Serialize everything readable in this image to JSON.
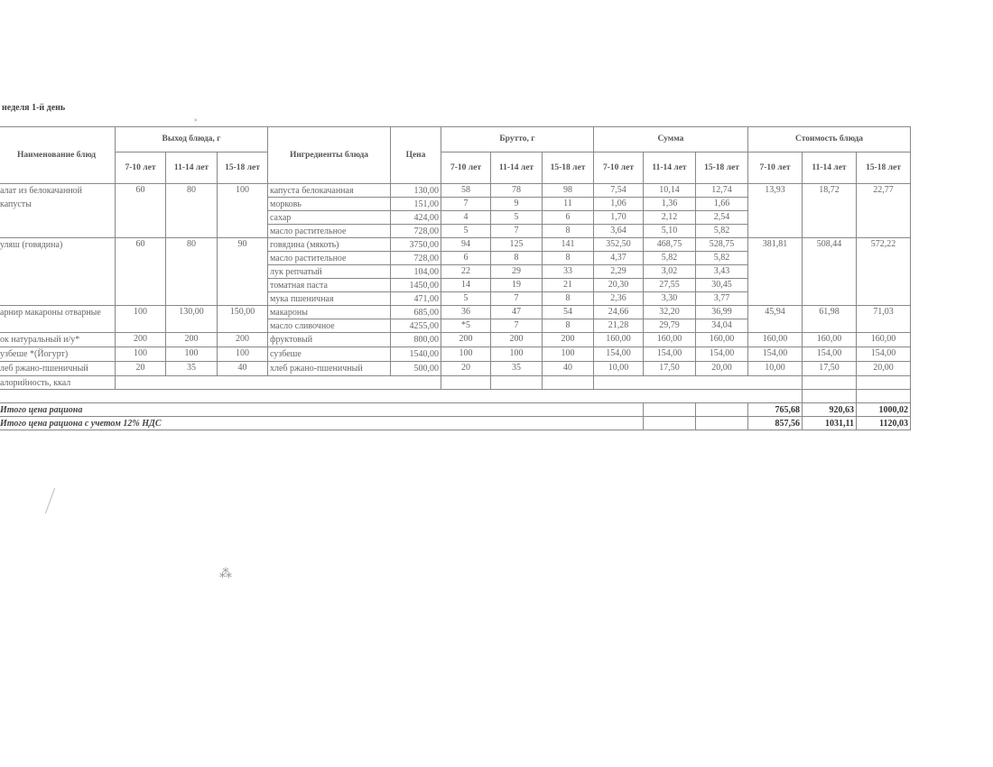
{
  "title": "неделя 1-й день",
  "headers": {
    "name": "Наименование блюд",
    "output": "Выход блюда, г",
    "ingredients": "Ингредиенты блюда",
    "price": "Цена",
    "brutto": "Брутто, г",
    "sum": "Сумма",
    "cost": "Стоимость блюда",
    "ages": [
      "7-10 лет",
      "11-14 лет",
      "15-18 лет"
    ]
  },
  "dishes": [
    {
      "name": "алат из белокачанной капусты",
      "out": [
        "60",
        "80",
        "100"
      ],
      "cost": [
        "13,93",
        "18,72",
        "22,77"
      ],
      "items": [
        {
          "ing": "капуста белокачанная",
          "price": "130,00",
          "brutto": [
            "58",
            "78",
            "98"
          ],
          "sum": [
            "7,54",
            "10,14",
            "12,74"
          ]
        },
        {
          "ing": "морковь",
          "price": "151,00",
          "brutto": [
            "7",
            "9",
            "11"
          ],
          "sum": [
            "1,06",
            "1,36",
            "1,66"
          ]
        },
        {
          "ing": "сахар",
          "price": "424,00",
          "brutto": [
            "4",
            "5",
            "6"
          ],
          "sum": [
            "1,70",
            "2,12",
            "2,54"
          ]
        },
        {
          "ing": "масло растительное",
          "price": "728,00",
          "brutto": [
            "5",
            "7",
            "8"
          ],
          "sum": [
            "3,64",
            "5,10",
            "5,82"
          ]
        }
      ]
    },
    {
      "name": "уляш (говядина)",
      "out": [
        "60",
        "80",
        "90"
      ],
      "cost": [
        "381,81",
        "508,44",
        "572,22"
      ],
      "items": [
        {
          "ing": "говядина (мякоть)",
          "price": "3750,00",
          "brutto": [
            "94",
            "125",
            "141"
          ],
          "sum": [
            "352,50",
            "468,75",
            "528,75"
          ]
        },
        {
          "ing": "масло растительное",
          "price": "728,00",
          "brutto": [
            "6",
            "8",
            "8"
          ],
          "sum": [
            "4,37",
            "5,82",
            "5,82"
          ]
        },
        {
          "ing": "лук репчатый",
          "price": "104,00",
          "brutto": [
            "22",
            "29",
            "33"
          ],
          "sum": [
            "2,29",
            "3,02",
            "3,43"
          ]
        },
        {
          "ing": "томатная паста",
          "price": "1450,00",
          "brutto": [
            "14",
            "19",
            "21"
          ],
          "sum": [
            "20,30",
            "27,55",
            "30,45"
          ]
        },
        {
          "ing": "мука пшеничная",
          "price": "471,00",
          "brutto": [
            "5",
            "7",
            "8"
          ],
          "sum": [
            "2,36",
            "3,30",
            "3,77"
          ]
        }
      ]
    },
    {
      "name": "арнир макароны отварные",
      "out": [
        "100",
        "130,00",
        "150,00"
      ],
      "cost": [
        "45,94",
        "61,98",
        "71,03"
      ],
      "items": [
        {
          "ing": "макароны",
          "price": "685,00",
          "brutto": [
            "36",
            "47",
            "54"
          ],
          "sum": [
            "24,66",
            "32,20",
            "36,99"
          ]
        },
        {
          "ing": "масло сливочное",
          "price": "4255,00",
          "brutto": [
            "*5",
            "7",
            "8"
          ],
          "sum": [
            "21,28",
            "29,79",
            "34,04"
          ]
        }
      ]
    },
    {
      "name": "ок натуральный и/у*",
      "out": [
        "200",
        "200",
        "200"
      ],
      "cost": [
        "160,00",
        "160,00",
        "160,00"
      ],
      "items": [
        {
          "ing": "фруктовый",
          "price": "800,00",
          "brutto": [
            "200",
            "200",
            "200"
          ],
          "sum": [
            "160,00",
            "160,00",
            "160,00"
          ]
        }
      ]
    },
    {
      "name": "узбеше *(Йогурт)",
      "out": [
        "100",
        "100",
        "100"
      ],
      "cost": [
        "154,00",
        "154,00",
        "154,00"
      ],
      "items": [
        {
          "ing": "сузбеше",
          "price": "1540,00",
          "brutto": [
            "100",
            "100",
            "100"
          ],
          "sum": [
            "154,00",
            "154,00",
            "154,00"
          ]
        }
      ]
    },
    {
      "name": "лeб ржано-пшеничный",
      "out": [
        "20",
        "35",
        "40"
      ],
      "cost": [
        "10,00",
        "17,50",
        "20,00"
      ],
      "items": [
        {
          "ing": "хлеб ржано-пшеничный",
          "price": "500,00",
          "brutto": [
            "20",
            "35",
            "40"
          ],
          "sum": [
            "10,00",
            "17,50",
            "20,00"
          ]
        }
      ]
    }
  ],
  "calories_label": "алорийность, ккал",
  "totals": [
    {
      "label": "Итого цена рациона",
      "values": [
        "765,68",
        "920,63",
        "1000,02"
      ]
    },
    {
      "label": "Итого цена рациона с учетом 12% НДС",
      "values": [
        "857,56",
        "1031,11",
        "1120,03"
      ]
    }
  ]
}
